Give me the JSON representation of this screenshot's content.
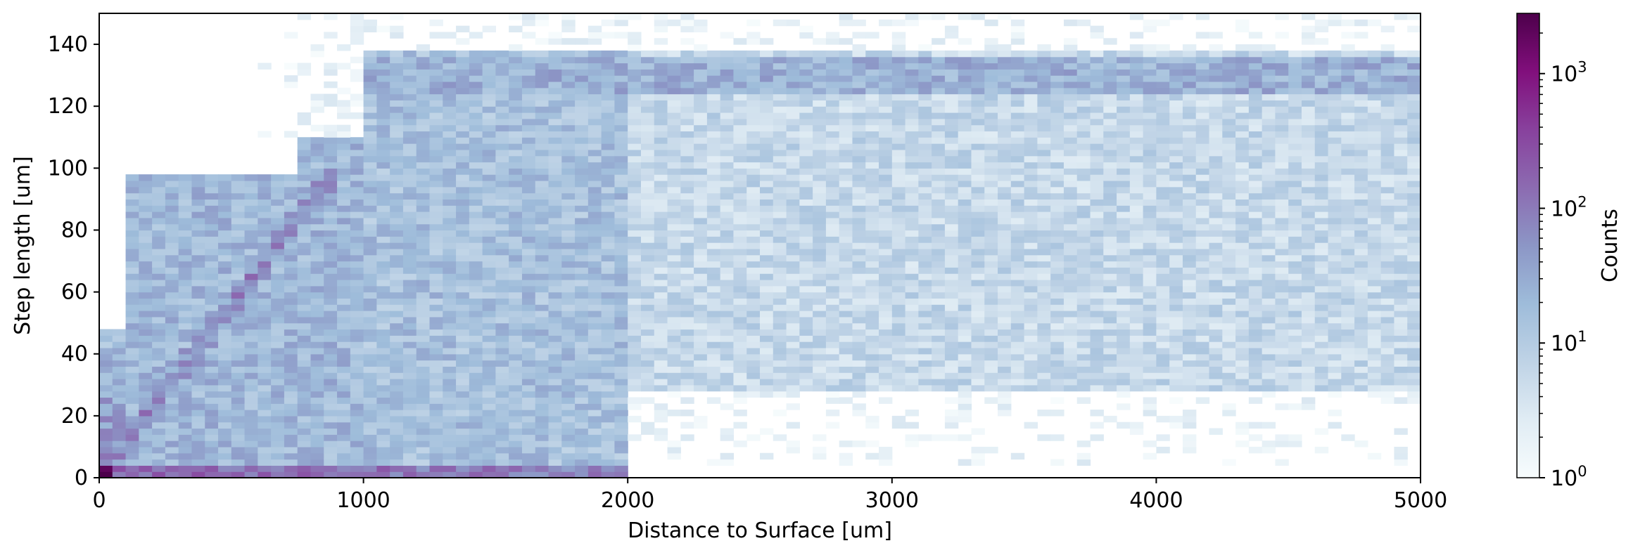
{
  "chart_data": {
    "type": "heatmap",
    "title": "",
    "xlabel": "Distance to Surface [um]",
    "ylabel": "Step length [um]",
    "xlim": [
      0,
      5000
    ],
    "ylim": [
      0,
      150
    ],
    "xticks": [
      0,
      1000,
      2000,
      3000,
      4000,
      5000
    ],
    "xtick_labels": [
      "0",
      "1000",
      "2000",
      "3000",
      "4000",
      "5000"
    ],
    "yticks": [
      0,
      20,
      40,
      60,
      80,
      100,
      120,
      140
    ],
    "ytick_labels": [
      "0",
      "20",
      "40",
      "60",
      "80",
      "100",
      "120",
      "140"
    ],
    "grid": false,
    "colormap": "BuPu",
    "colormap_stops": [
      "#f7fcfd",
      "#e0ecf4",
      "#bfd3e6",
      "#9ebcda",
      "#8c96c6",
      "#8c6bb1",
      "#88419d",
      "#810f7c",
      "#4d004b"
    ],
    "colorbar": {
      "label": "Counts",
      "scale": "log",
      "range": [
        1,
        2800
      ],
      "ticks": [
        1,
        10,
        100,
        1000
      ],
      "tick_labels": [
        {
          "base": "10",
          "exp": "0"
        },
        {
          "base": "10",
          "exp": "1"
        },
        {
          "base": "10",
          "exp": "2"
        },
        {
          "base": "10",
          "exp": "3"
        }
      ]
    },
    "bin_width_x": 50,
    "bin_height_y": 2,
    "regions": [
      {
        "description": "near-surface band",
        "x": [
          0,
          100
        ],
        "y": [
          0,
          48
        ],
        "typical_counts": 60
      },
      {
        "description": "uniform block",
        "x": [
          100,
          750
        ],
        "y": [
          0,
          98
        ],
        "typical_counts": 20
      },
      {
        "description": "uniform block",
        "x": [
          750,
          1000
        ],
        "y": [
          0,
          110
        ],
        "typical_counts": 20
      },
      {
        "description": "uniform block",
        "x": [
          1000,
          2000
        ],
        "y": [
          0,
          138
        ],
        "typical_counts": 15
      },
      {
        "description": "sparse band",
        "x": [
          2000,
          5000
        ],
        "y": [
          28,
          138
        ],
        "typical_counts": 6
      },
      {
        "description": "dense horizontal band",
        "x": [
          1000,
          5000
        ],
        "y": [
          124,
          136
        ],
        "typical_counts": 25
      },
      {
        "description": "diagonal ridge",
        "x": [
          0,
          900
        ],
        "y": [
          0,
          100
        ],
        "typical_counts": 90
      },
      {
        "description": "bottom row ridge",
        "x": [
          0,
          2000
        ],
        "y": [
          0,
          4
        ],
        "typical_counts": 150
      },
      {
        "description": "origin peak",
        "x": [
          0,
          50
        ],
        "y": [
          0,
          4
        ],
        "typical_counts": 2800
      }
    ]
  }
}
